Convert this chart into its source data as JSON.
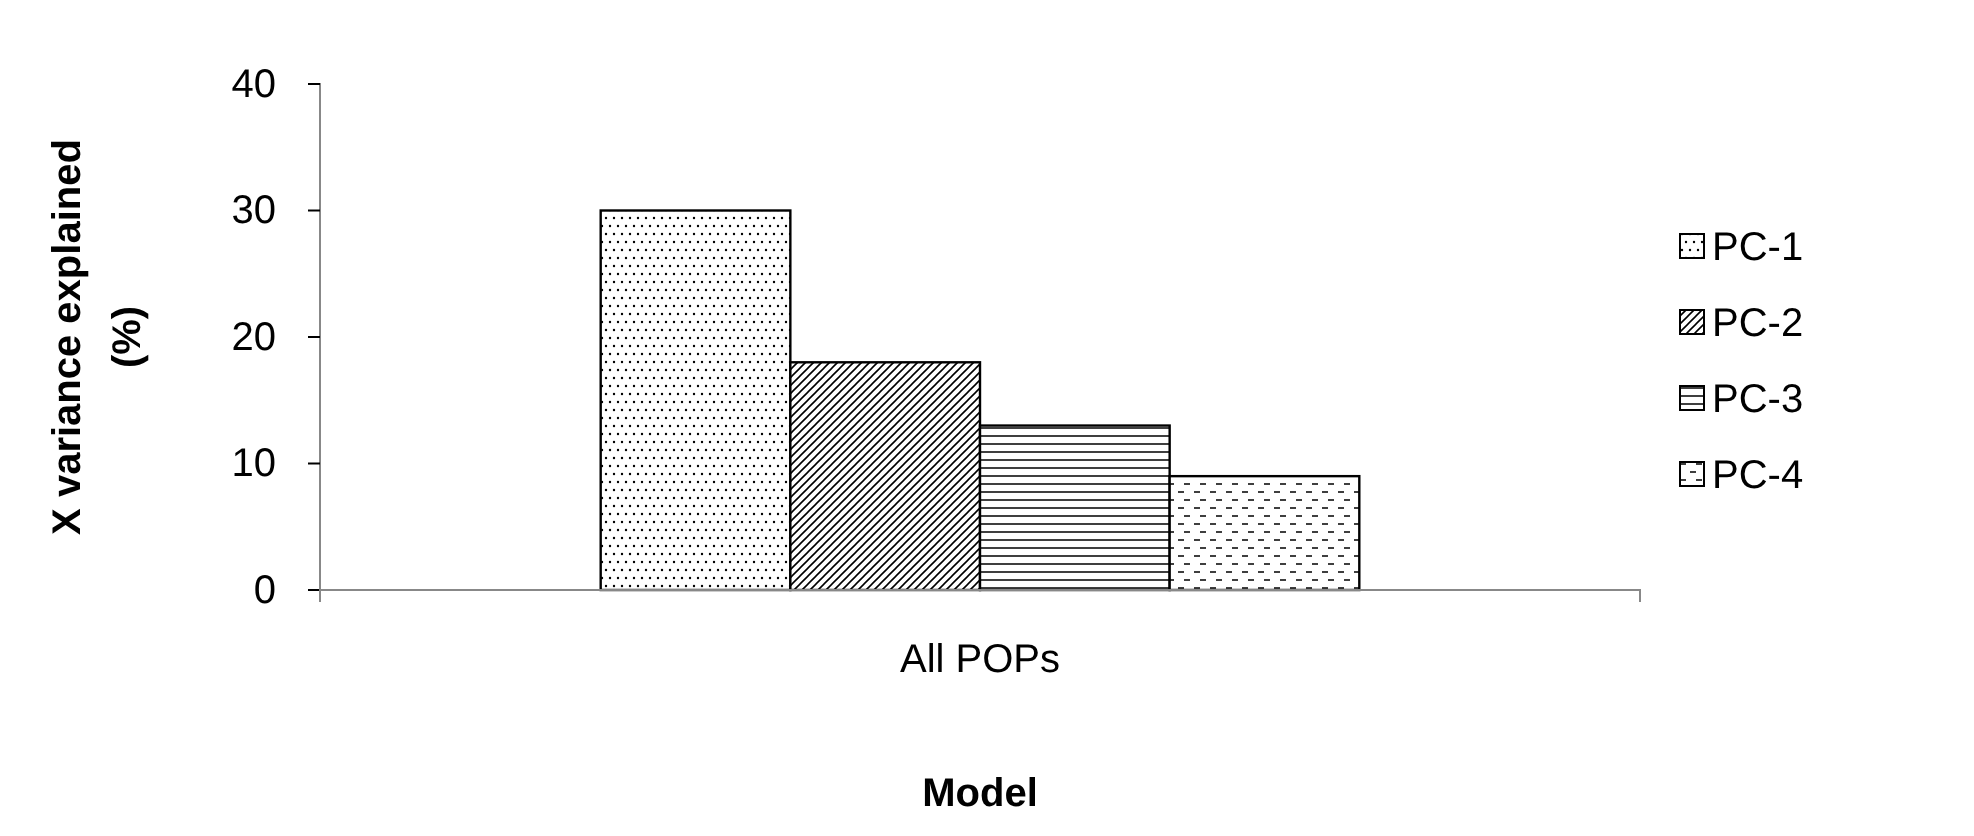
{
  "chart_data": {
    "type": "bar",
    "xlabel": "Model",
    "ylabel": "X variance explained (%)",
    "categories": [
      "All POPs"
    ],
    "series": [
      {
        "name": "PC-1",
        "color": "#000000",
        "values": [
          30
        ]
      },
      {
        "name": "PC-2",
        "color": "#000000",
        "values": [
          18
        ]
      },
      {
        "name": "PC-3",
        "color": "#000000",
        "values": [
          13
        ]
      },
      {
        "name": "PC-4",
        "color": "#000000",
        "values": [
          9
        ]
      }
    ],
    "ylim": [
      0,
      40
    ],
    "yticks": [
      0,
      10,
      20,
      30,
      40
    ],
    "legend": "right",
    "grid": false
  }
}
